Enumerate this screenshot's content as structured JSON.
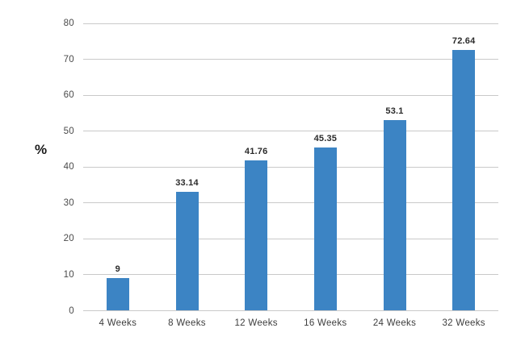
{
  "chart_data": {
    "type": "bar",
    "title": "",
    "ylabel": "%",
    "xlabel": "",
    "categories": [
      "4 Weeks",
      "8 Weeks",
      "12 Weeks",
      "16 Weeks",
      "24 Weeks",
      "32 Weeks"
    ],
    "values": [
      9,
      33.14,
      41.76,
      45.35,
      53.1,
      72.64
    ],
    "value_labels": [
      "9",
      "33.14",
      "41.76",
      "45.35",
      "53.1",
      "72.64"
    ],
    "ylim": [
      0,
      80
    ],
    "yticks": [
      0,
      10,
      20,
      30,
      40,
      50,
      60,
      70,
      80
    ],
    "grid": true,
    "legend_position": "none",
    "colors": {
      "bar": "#3c84c4",
      "grid": "#c9c9c9",
      "tick_text": "#4a4a4a",
      "category_text": "#3d3d3d",
      "value_text": "#2b2b2b",
      "background": "#ffffff"
    }
  }
}
